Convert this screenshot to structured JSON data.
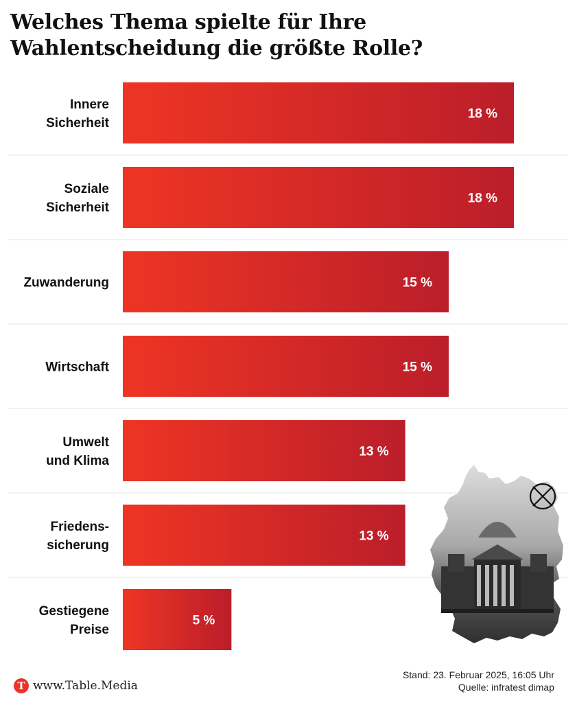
{
  "title": "Welches Thema spielte für Ihre Wahlentscheidung die größte Rolle?",
  "chart_data": {
    "type": "bar",
    "orientation": "horizontal",
    "categories": [
      [
        "Innere",
        "Sicherheit"
      ],
      [
        "Soziale",
        "Sicherheit"
      ],
      [
        "Zuwanderung"
      ],
      [
        "Wirtschaft"
      ],
      [
        "Umwelt",
        "und Klima"
      ],
      [
        "Friedens-",
        "sicherung"
      ],
      [
        "Gestiegene",
        "Preise"
      ]
    ],
    "values": [
      18,
      18,
      15,
      15,
      13,
      13,
      5
    ],
    "value_labels": [
      "18 %",
      "18 %",
      "15 %",
      "15 %",
      "13 %",
      "13 %",
      "5 %"
    ],
    "unit": "%",
    "xlim": [
      0,
      18
    ],
    "bar_gradient": [
      "#ee3524",
      "#bb1e2a"
    ]
  },
  "footer": {
    "logo_letter": "T",
    "site": "www.Table.Media",
    "stand": "Stand: 23. Februar 2025, 16:05 Uhr",
    "source": "Quelle: infratest dimap"
  }
}
